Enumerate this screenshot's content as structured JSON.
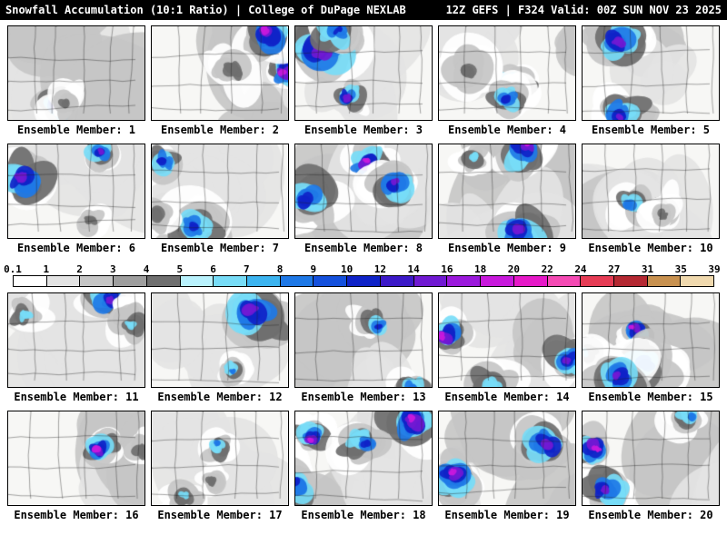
{
  "header": {
    "left": "Snowfall Accumulation (10:1 Ratio) | College of DuPage NEXLAB",
    "right": "12Z GEFS | F324 Valid: 00Z SUN NOV 23 2025"
  },
  "members": [
    "Ensemble Member: 1",
    "Ensemble Member: 2",
    "Ensemble Member: 3",
    "Ensemble Member: 4",
    "Ensemble Member: 5",
    "Ensemble Member: 6",
    "Ensemble Member: 7",
    "Ensemble Member: 8",
    "Ensemble Member: 9",
    "Ensemble Member: 10",
    "Ensemble Member: 11",
    "Ensemble Member: 12",
    "Ensemble Member: 13",
    "Ensemble Member: 14",
    "Ensemble Member: 15",
    "Ensemble Member: 16",
    "Ensemble Member: 17",
    "Ensemble Member: 18",
    "Ensemble Member: 19",
    "Ensemble Member: 20"
  ],
  "colorbar": {
    "tick_labels": [
      "0.1",
      "1",
      "2",
      "3",
      "4",
      "5",
      "6",
      "7",
      "8",
      "9",
      "10",
      "12",
      "14",
      "16",
      "18",
      "20",
      "22",
      "24",
      "27",
      "31",
      "35",
      "39"
    ],
    "cell_colors": [
      "#ffffff",
      "#e3e3e3",
      "#c5c5c5",
      "#9e9e9e",
      "#6f6f6f",
      "#b9f2fd",
      "#77dcf7",
      "#3cb4f0",
      "#1e78e6",
      "#1450dc",
      "#0f23c8",
      "#3c19c8",
      "#7019d2",
      "#9b19dc",
      "#c819dc",
      "#e619c8",
      "#f54ab4",
      "#e63c55",
      "#b42832",
      "#c8914f",
      "#f0d9ae"
    ]
  },
  "style": {
    "header_bg": "#000000",
    "header_fg": "#ffffff",
    "map_bg": "#f7f7f5",
    "border_color": "#000000"
  }
}
